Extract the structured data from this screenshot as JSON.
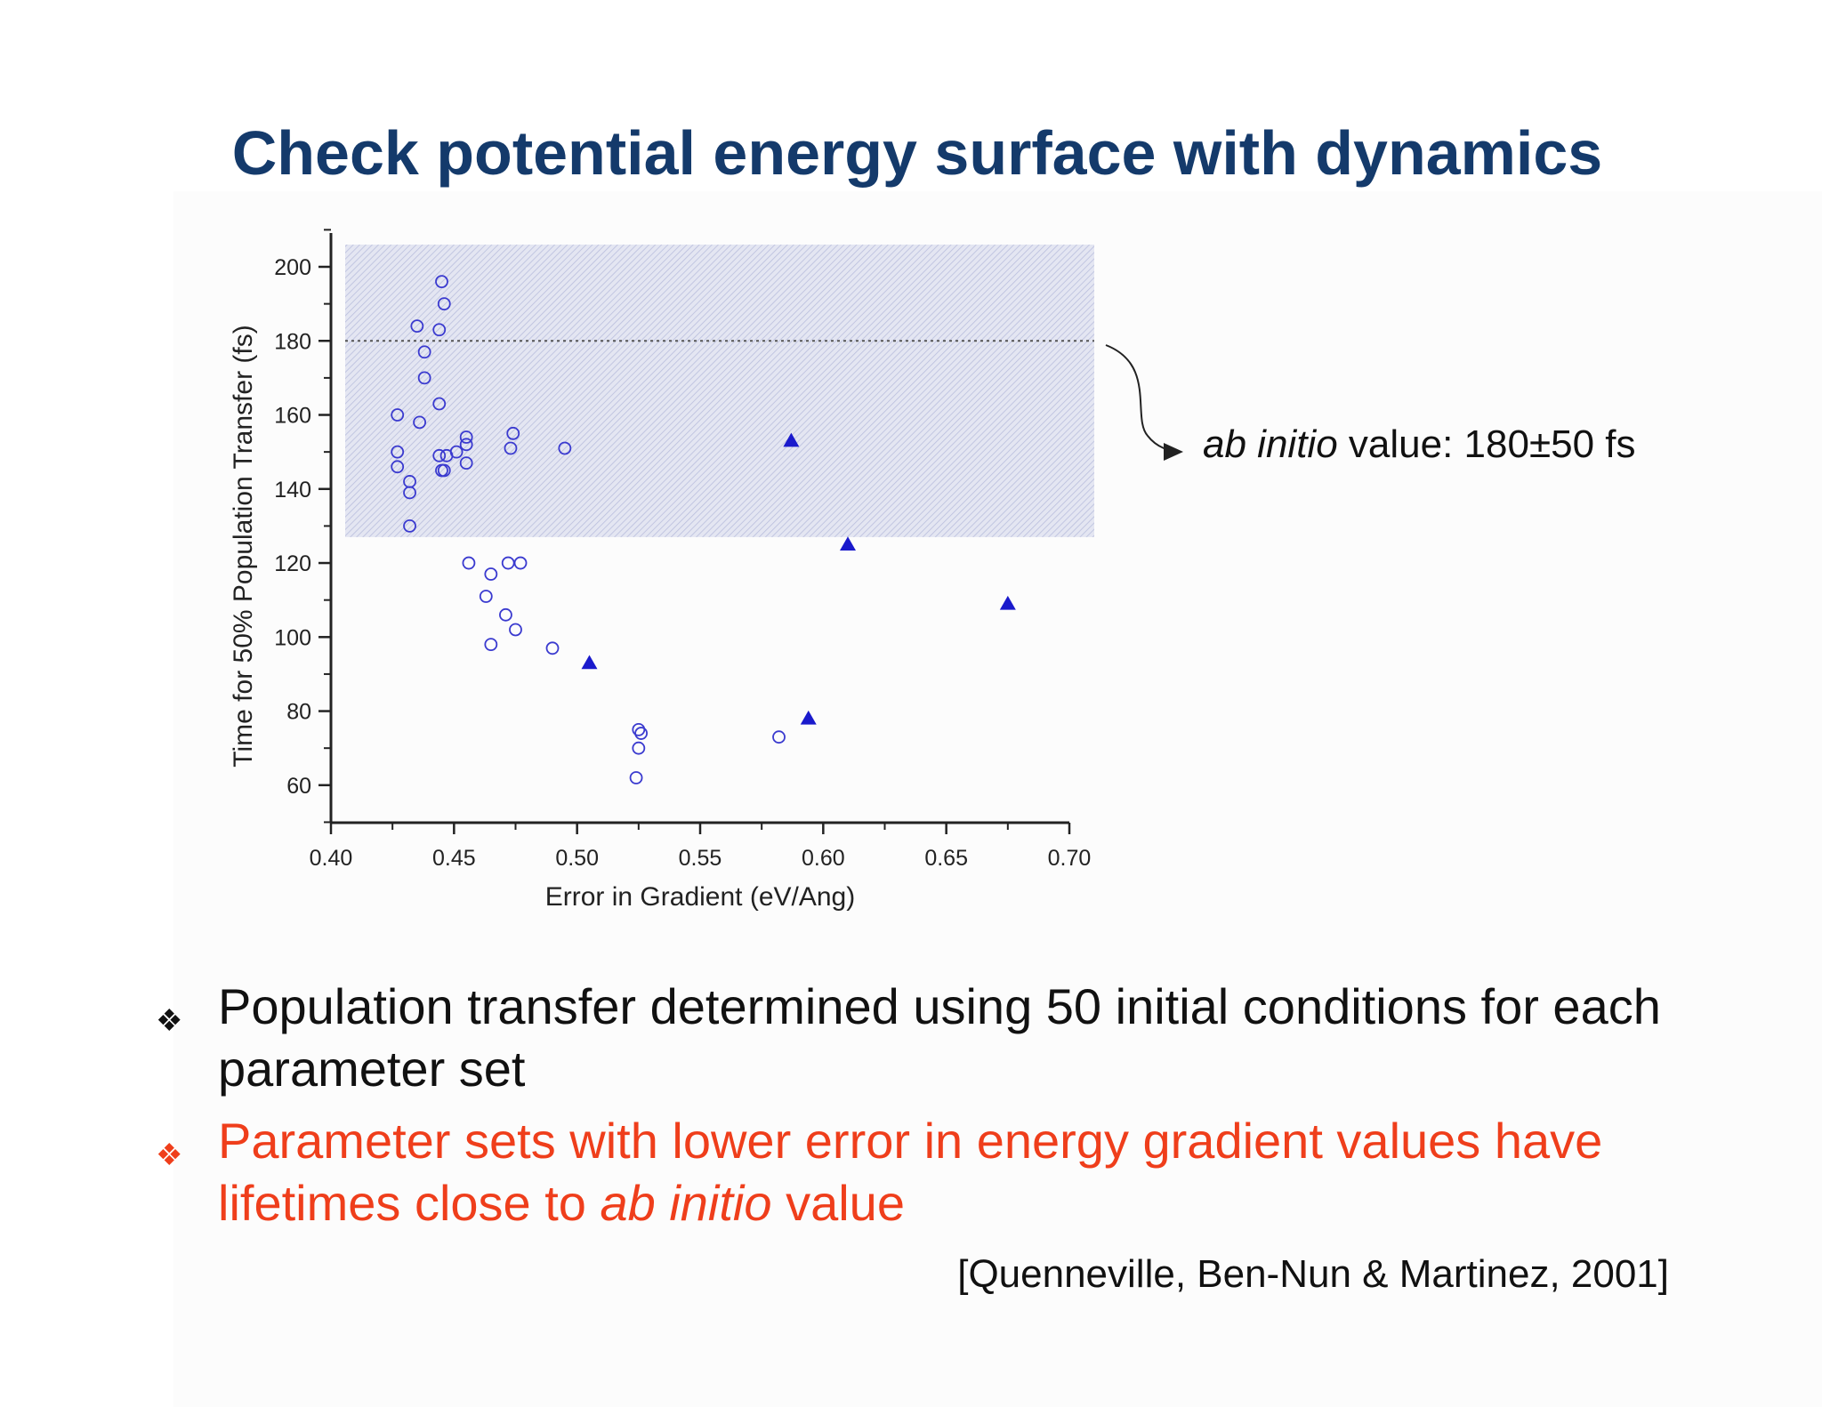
{
  "slide": {
    "title": "Check potential energy surface with dynamics",
    "annotation": {
      "italic": "ab initio",
      "rest": " value: 180±50 fs"
    },
    "bullets": [
      {
        "marker": "❖",
        "text": "Population transfer determined using 50 initial conditions for each parameter set",
        "color": "#111111"
      },
      {
        "marker": "❖",
        "text_before": "Parameter sets with lower error in energy gradient values have lifetimes close to ",
        "italic": "ab initio",
        "text_after": " value",
        "color": "#ef3e1b"
      }
    ],
    "citation": "[Quenneville, Ben-Nun & Martinez, 2001]"
  },
  "chart_data": {
    "type": "scatter",
    "xlabel": "Error in Gradient (eV/Ang)",
    "ylabel": "Time for 50% Population Transfer (fs)",
    "xlim": [
      0.4,
      0.7
    ],
    "ylim": [
      50,
      205
    ],
    "x_ticks": [
      "0.40",
      "0.45",
      "0.50",
      "0.55",
      "0.60",
      "0.65",
      "0.70"
    ],
    "y_ticks": [
      "60",
      "80",
      "100",
      "120",
      "140",
      "160",
      "180",
      "200"
    ],
    "reference_line": {
      "y": 180,
      "style": "dotted"
    },
    "shaded_band": {
      "y_min": 127,
      "y_max": 206,
      "x_min": 0.405,
      "x_max": 0.71,
      "pattern": "hatched",
      "color": "#c8cce6"
    },
    "series": [
      {
        "marker": "circle-open",
        "color": "#3a3acf",
        "points": [
          [
            0.445,
            196
          ],
          [
            0.446,
            190
          ],
          [
            0.435,
            184
          ],
          [
            0.444,
            183
          ],
          [
            0.438,
            177
          ],
          [
            0.438,
            170
          ],
          [
            0.444,
            163
          ],
          [
            0.427,
            160
          ],
          [
            0.436,
            158
          ],
          [
            0.455,
            154
          ],
          [
            0.474,
            155
          ],
          [
            0.455,
            152
          ],
          [
            0.473,
            151
          ],
          [
            0.495,
            151
          ],
          [
            0.427,
            150
          ],
          [
            0.451,
            150
          ],
          [
            0.447,
            149
          ],
          [
            0.444,
            149
          ],
          [
            0.455,
            147
          ],
          [
            0.427,
            146
          ],
          [
            0.445,
            145
          ],
          [
            0.446,
            145
          ],
          [
            0.432,
            142
          ],
          [
            0.432,
            139
          ],
          [
            0.432,
            130
          ],
          [
            0.456,
            120
          ],
          [
            0.472,
            120
          ],
          [
            0.477,
            120
          ],
          [
            0.465,
            117
          ],
          [
            0.463,
            111
          ],
          [
            0.471,
            106
          ],
          [
            0.475,
            102
          ],
          [
            0.465,
            98
          ],
          [
            0.49,
            97
          ],
          [
            0.525,
            75
          ],
          [
            0.526,
            74
          ],
          [
            0.582,
            73
          ],
          [
            0.525,
            70
          ],
          [
            0.524,
            62
          ]
        ]
      },
      {
        "marker": "triangle-filled",
        "color": "#1a1acc",
        "points": [
          [
            0.587,
            153
          ],
          [
            0.61,
            125
          ],
          [
            0.675,
            109
          ],
          [
            0.505,
            93
          ],
          [
            0.594,
            78
          ]
        ]
      }
    ]
  }
}
